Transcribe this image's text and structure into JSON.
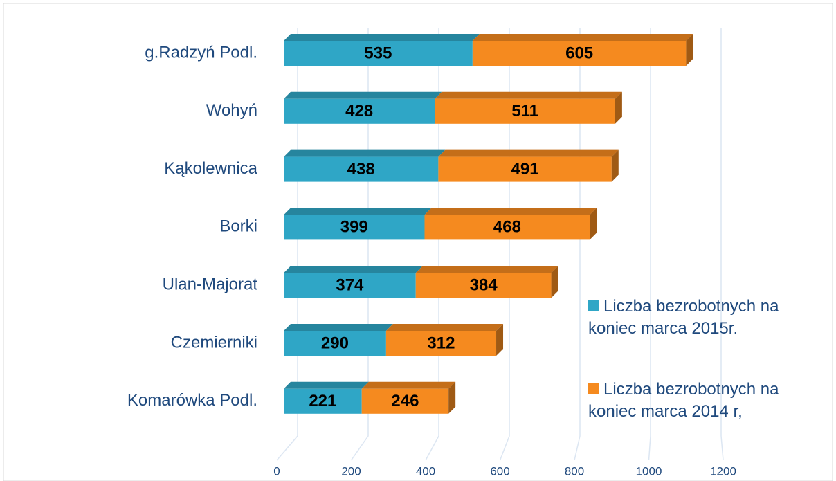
{
  "chart_data": {
    "type": "stacked-barh",
    "categories": [
      "g.Radzyń Podl.",
      "Wohyń",
      "Kąkolewnica",
      "Borki",
      "Ulan-Majorat",
      "Czemierniki",
      "Komarówka Podl."
    ],
    "series": [
      {
        "name": "Liczba bezrobotnych na koniec marca 2015r.",
        "color": "#2fa6c6",
        "values": [
          535,
          428,
          438,
          399,
          374,
          290,
          221
        ]
      },
      {
        "name": "Liczba bezrobotnych na koniec marca 2014 r,",
        "color": "#f58a1f",
        "values": [
          605,
          511,
          491,
          468,
          384,
          312,
          246
        ]
      }
    ],
    "xlim": [
      0,
      1200
    ],
    "xticks": [
      0,
      200,
      400,
      600,
      800,
      1000,
      1200
    ],
    "grid": true,
    "legend": "right"
  }
}
